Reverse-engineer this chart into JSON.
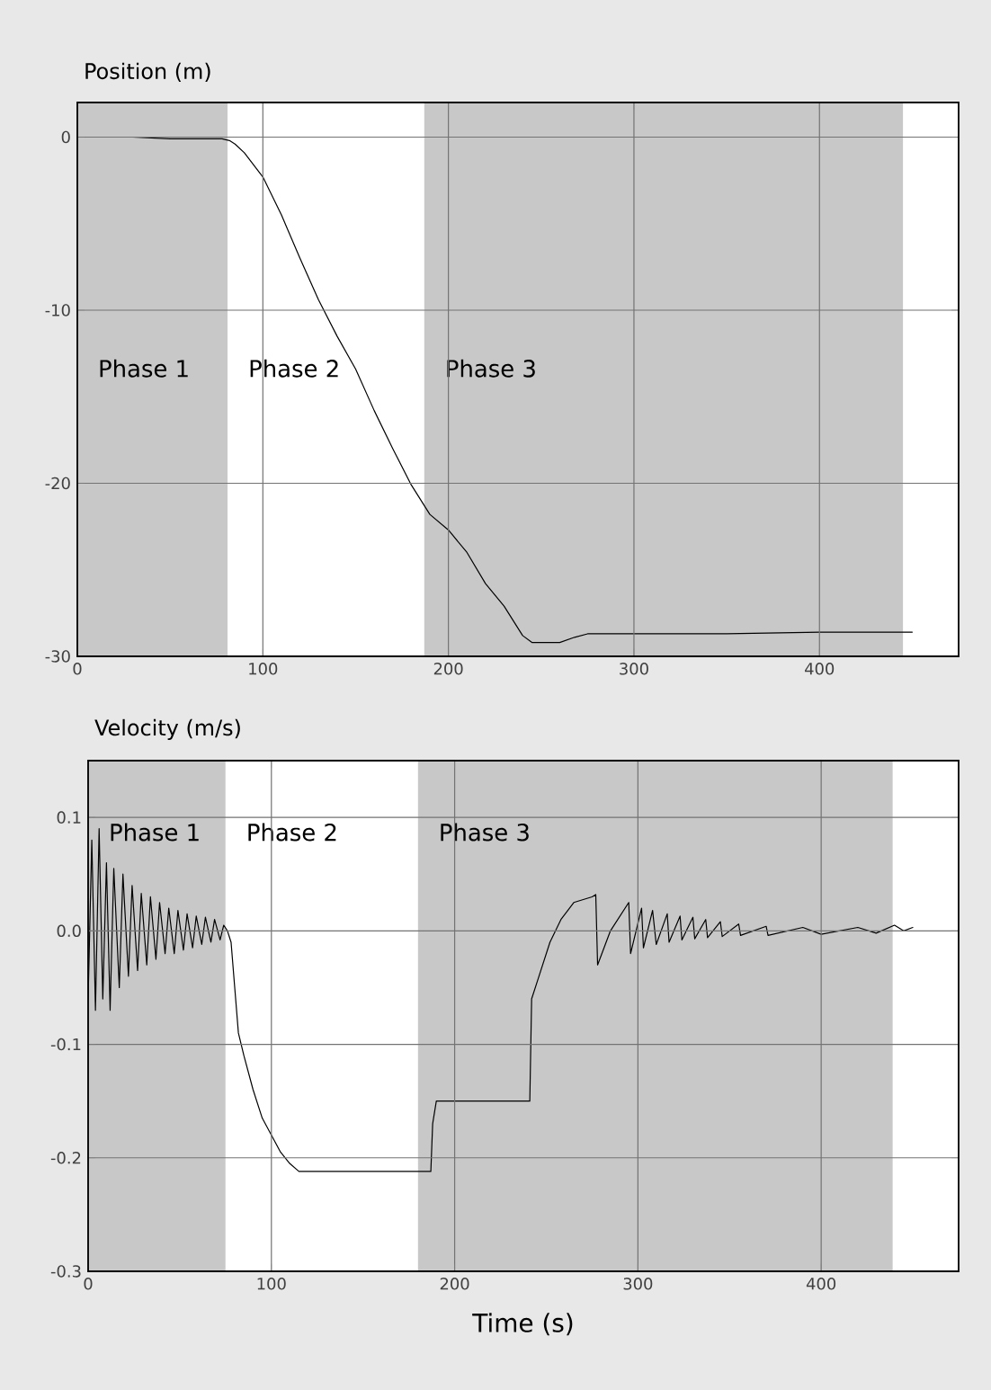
{
  "chart_data": [
    {
      "type": "line",
      "ylabel": "Position (m)",
      "x": [
        0,
        30,
        50,
        78,
        82,
        85,
        90,
        100,
        110,
        120,
        130,
        140,
        150,
        160,
        170,
        180,
        190,
        200,
        210,
        220,
        230,
        240,
        245,
        260,
        268,
        275,
        300,
        350,
        400,
        450
      ],
      "series": [
        {
          "color": "#000000",
          "values": [
            0,
            0,
            -0.1,
            -0.1,
            -0.2,
            -0.4,
            -0.9,
            -2.3,
            -4.5,
            -7,
            -9.4,
            -11.5,
            -13.4,
            -15.8,
            -18,
            -20.1,
            -21.8,
            -22.7,
            -24,
            -25.8,
            -27.1,
            -28.8,
            -29.2,
            -29.2,
            -28.9,
            -28.7,
            -28.7,
            -28.7,
            -28.6,
            -28.6
          ]
        }
      ],
      "xlim": [
        0,
        475
      ],
      "ylim": [
        -30,
        2
      ],
      "xticks": [
        0,
        100,
        200,
        300,
        400
      ],
      "yticks": [
        0,
        -10,
        -20,
        -30
      ],
      "grid": true,
      "marker": "none",
      "line_style": "solid",
      "bands": [
        {
          "axis": "x",
          "from": 0,
          "to": 81,
          "label": "Phase 1",
          "color": "#c8c8c8"
        },
        {
          "axis": "x",
          "from": 81,
          "to": 187,
          "label": "Phase 2",
          "color": "#ffffff"
        },
        {
          "axis": "x",
          "from": 187,
          "to": 445,
          "label": "Phase 3",
          "color": "#c8c8c8"
        }
      ]
    },
    {
      "type": "line",
      "ylabel": "Velocity (m/s)",
      "xlabel": "Time (s)",
      "x": [
        0,
        2,
        4,
        6,
        8,
        10,
        12,
        14,
        17,
        19,
        22,
        24,
        27,
        29,
        32,
        34,
        37,
        39,
        42,
        44,
        47,
        49,
        52,
        54,
        57,
        59,
        62,
        64,
        67,
        69,
        72,
        74,
        76,
        78,
        80,
        82,
        85,
        90,
        95,
        100,
        105,
        110,
        115,
        187,
        188,
        190,
        241,
        242,
        246,
        252,
        258,
        265,
        275,
        277,
        278,
        285,
        295,
        296,
        302,
        303,
        308,
        310,
        316,
        317,
        323,
        324,
        330,
        331,
        337,
        338,
        345,
        346,
        355,
        356,
        370,
        371,
        390,
        400,
        420,
        430,
        440,
        445,
        450
      ],
      "series": [
        {
          "color": "#000000",
          "values": [
            -0.06,
            0.08,
            -0.07,
            0.09,
            -0.06,
            0.06,
            -0.07,
            0.055,
            -0.05,
            0.05,
            -0.04,
            0.04,
            -0.035,
            0.033,
            -0.03,
            0.03,
            -0.025,
            0.025,
            -0.02,
            0.02,
            -0.02,
            0.018,
            -0.017,
            0.015,
            -0.015,
            0.013,
            -0.012,
            0.012,
            -0.01,
            0.01,
            -0.008,
            0.005,
            0.0,
            -0.01,
            -0.05,
            -0.09,
            -0.11,
            -0.14,
            -0.165,
            -0.18,
            -0.195,
            -0.205,
            -0.212,
            -0.212,
            -0.17,
            -0.15,
            -0.15,
            -0.06,
            -0.04,
            -0.01,
            0.01,
            0.025,
            0.03,
            0.032,
            -0.03,
            0.0,
            0.025,
            -0.02,
            0.02,
            -0.015,
            0.018,
            -0.012,
            0.015,
            -0.01,
            0.013,
            -0.008,
            0.012,
            -0.007,
            0.01,
            -0.006,
            0.008,
            -0.005,
            0.006,
            -0.004,
            0.004,
            -0.004,
            0.003,
            -0.003,
            0.003,
            -0.002,
            0.005,
            0.0,
            0.003
          ]
        }
      ],
      "xlim": [
        0,
        475
      ],
      "ylim": [
        -0.3,
        0.15
      ],
      "xticks": [
        0,
        100,
        200,
        300,
        400
      ],
      "yticks": [
        {
          "value": 0.1,
          "label": "0.1"
        },
        {
          "value": 0,
          "label": "0.0"
        },
        {
          "value": -0.1,
          "label": "-0.1"
        },
        {
          "value": -0.2,
          "label": "-0.2"
        },
        {
          "value": -0.3,
          "label": "-0.3"
        }
      ],
      "grid": true,
      "marker": "none",
      "line_style": "solid",
      "bands": [
        {
          "axis": "x",
          "from": 0,
          "to": 75,
          "label": "Phase 1",
          "color": "#c8c8c8"
        },
        {
          "axis": "x",
          "from": 75,
          "to": 180,
          "label": "Phase 2",
          "color": "#ffffff"
        },
        {
          "axis": "x",
          "from": 180,
          "to": 439,
          "label": "Phase 3",
          "color": "#c8c8c8"
        }
      ]
    }
  ]
}
